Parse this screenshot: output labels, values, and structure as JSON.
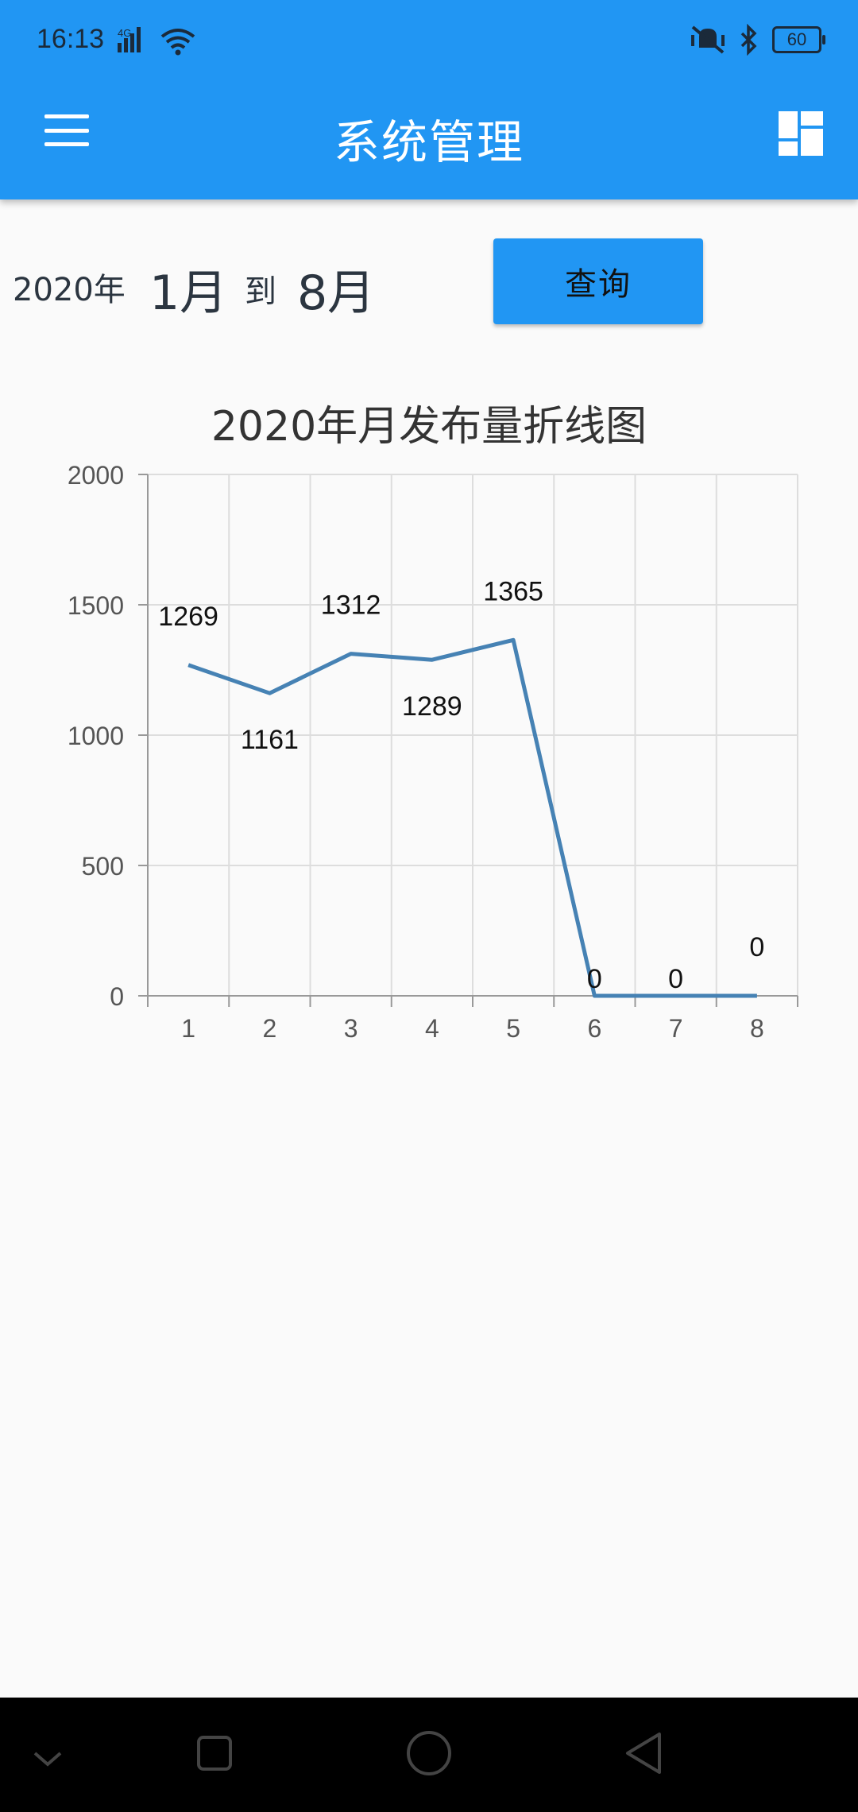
{
  "status_bar": {
    "time": "16:13",
    "network": "4G",
    "battery": "60",
    "icons": [
      "signal-icon",
      "wifi-icon",
      "mute-vibrate-icon",
      "bluetooth-icon",
      "battery-icon"
    ]
  },
  "app_bar": {
    "title": "系统管理",
    "menu_icon": "hamburger-menu-icon",
    "action_icon": "dashboard-icon",
    "color": "#2196f3"
  },
  "query": {
    "year": "2020年",
    "start_month": "1月",
    "to": "到",
    "end_month": "8月",
    "button_label": "查询"
  },
  "chart_data": {
    "type": "line",
    "title": "2020年月发布量折线图",
    "categories": [
      "1",
      "2",
      "3",
      "4",
      "5",
      "6",
      "7",
      "8"
    ],
    "values": [
      1269,
      1161,
      1312,
      1289,
      1365,
      0,
      0,
      0
    ],
    "data_labels": [
      "1269",
      "1161",
      "1312",
      "1289",
      "1365",
      "0",
      "0",
      "0"
    ],
    "ylim": [
      0,
      2000
    ],
    "yticks": [
      0,
      500,
      1000,
      1500,
      2000
    ],
    "grid": true,
    "line_color": "#4682b4"
  },
  "nav_bar": {
    "icons": [
      "collapse-icon",
      "recents-icon",
      "home-icon",
      "back-icon"
    ]
  }
}
